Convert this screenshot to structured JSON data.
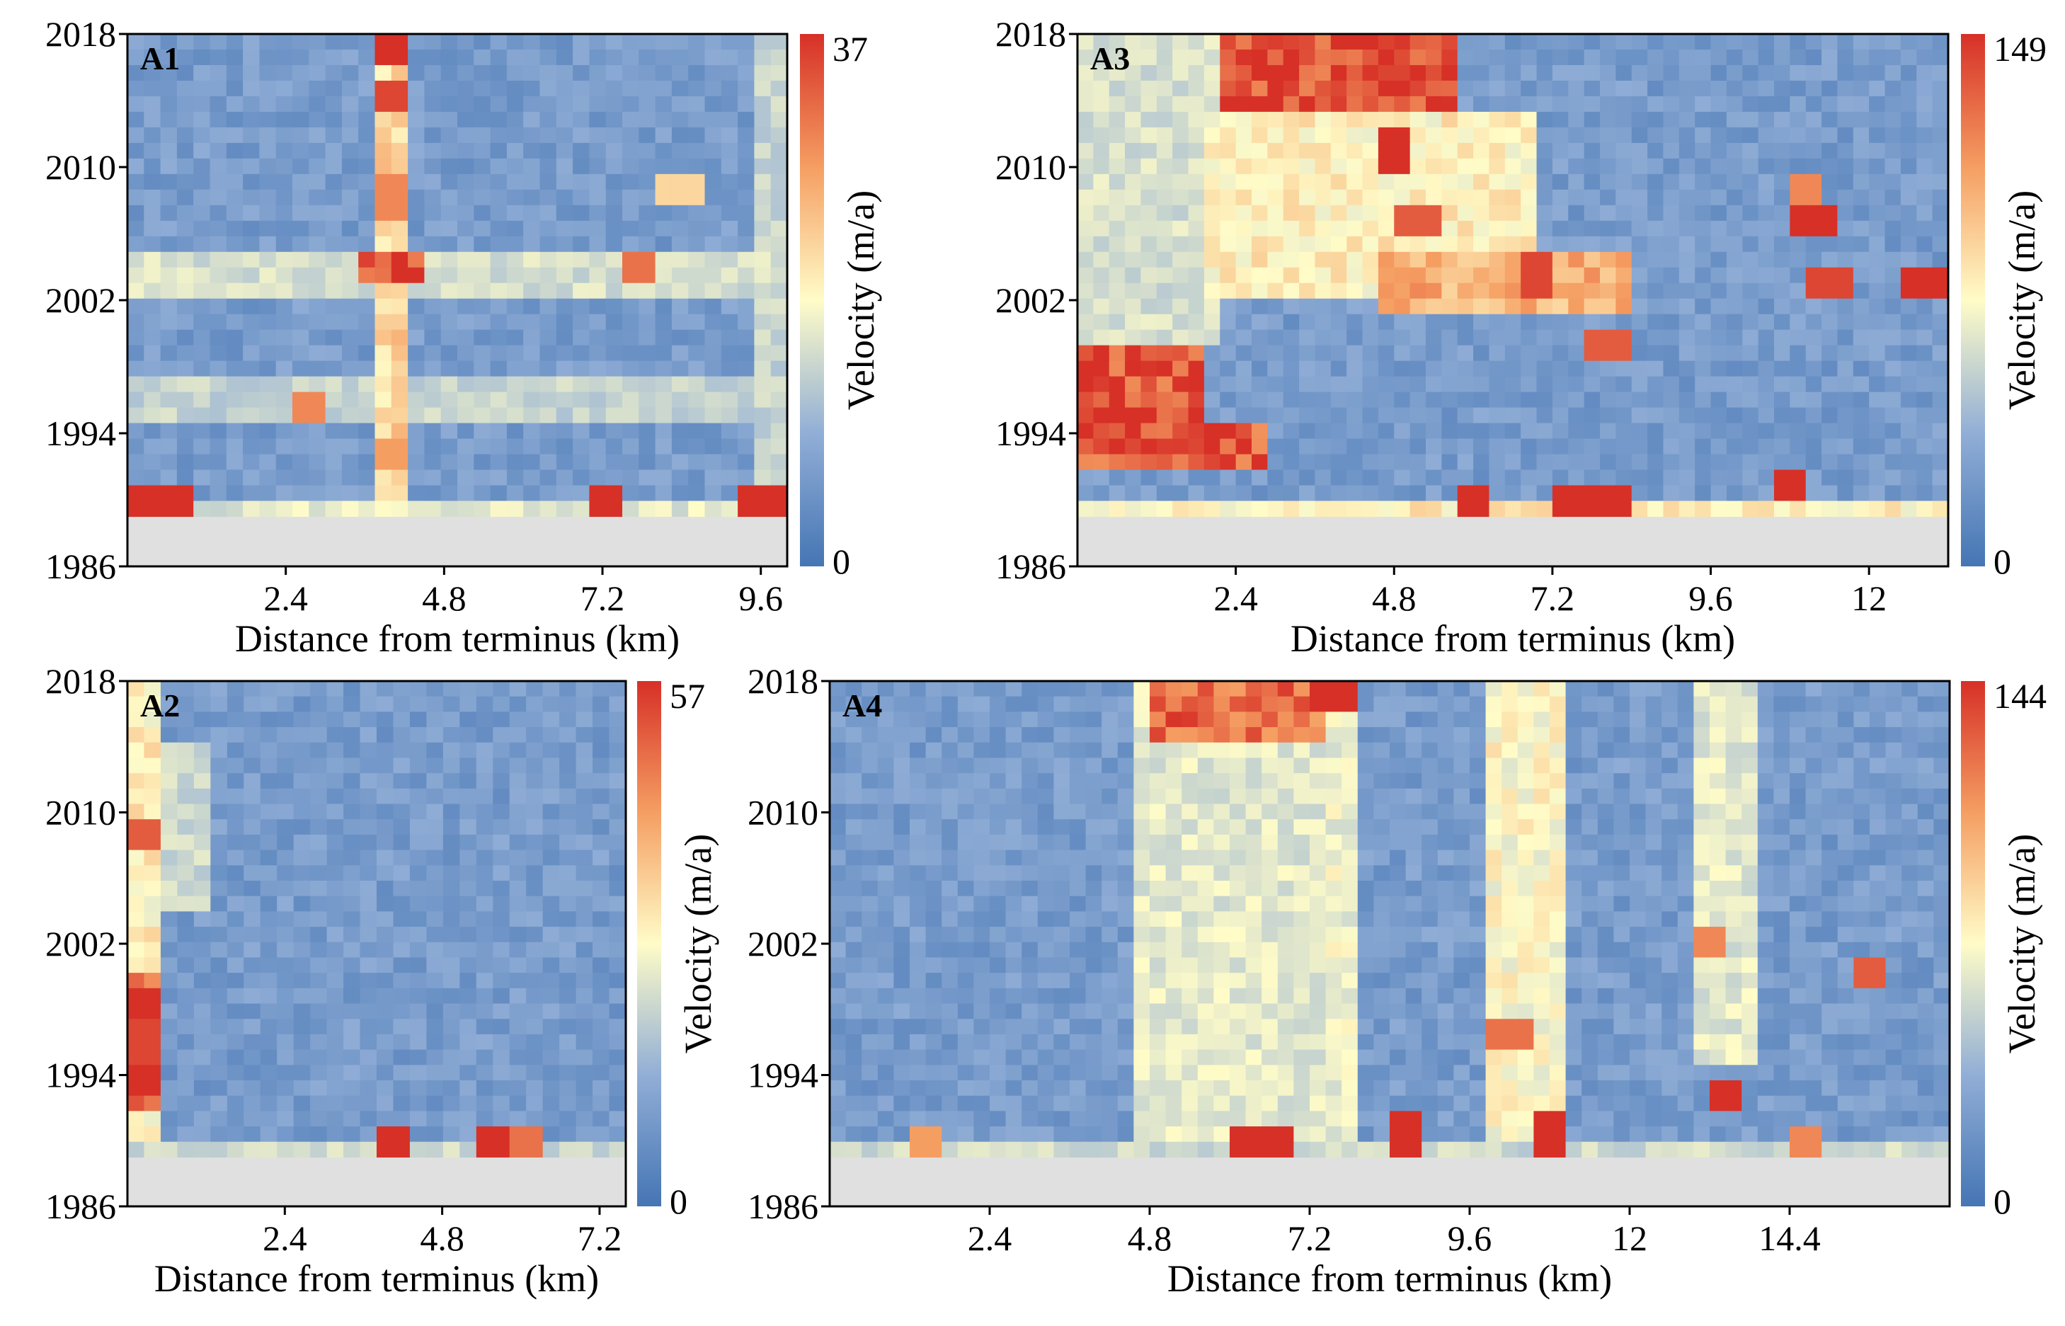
{
  "figure": {
    "description_units": "distance km, year, velocity m/a"
  },
  "chart_data": [
    {
      "type": "heatmap",
      "panel_label": "A1",
      "xlabel": "Distance from terminus (km)",
      "ylabel": "",
      "x_ticks": [
        "2.4",
        "4.8",
        "7.2",
        "9.6"
      ],
      "x_tick_values": [
        2.4,
        4.8,
        7.2,
        9.6
      ],
      "xlim": [
        0,
        10.0
      ],
      "y_ticks": [
        "2018",
        "2010",
        "2002",
        "1994",
        "1986"
      ],
      "y_tick_values": [
        2018,
        2010,
        2002,
        1994,
        1986
      ],
      "ylim": [
        1986,
        2018
      ],
      "data_years": [
        1989,
        2018
      ],
      "colorbar": {
        "label": "Velocity (m/a)",
        "min": 0,
        "max": 37,
        "min_label": "0",
        "max_label": "37"
      },
      "features": [
        {
          "x_from": 3.7,
          "x_to": 4.3,
          "y_from": 1990,
          "y_to": 2018,
          "level": 0.62
        },
        {
          "x_from": 3.6,
          "x_to": 4.6,
          "y_from": 2003,
          "y_to": 2005,
          "level": 0.98
        },
        {
          "x_from": 0.0,
          "x_to": 10.0,
          "y_from": 2002,
          "y_to": 2004.5,
          "level": 0.42
        },
        {
          "x_from": 0.0,
          "x_to": 10.0,
          "y_from": 1995,
          "y_to": 1997,
          "level": 0.38
        },
        {
          "x_from": 0.0,
          "x_to": 10.0,
          "y_from": 1989,
          "y_to": 1990,
          "level": 0.45
        },
        {
          "x_from": 9.4,
          "x_to": 10.0,
          "y_from": 1990,
          "y_to": 2018,
          "level": 0.38
        }
      ],
      "hotspots": [
        [
          4.0,
          2017,
          1.0
        ],
        [
          4.0,
          2014,
          0.95
        ],
        [
          4.0,
          2008,
          0.8
        ],
        [
          4.0,
          1993,
          0.75
        ],
        [
          7.2,
          1989.5,
          1.0
        ],
        [
          0.2,
          1989.5,
          1.0
        ],
        [
          0.8,
          1989.5,
          1.0
        ],
        [
          9.6,
          1989.5,
          1.0
        ],
        [
          7.8,
          2004,
          0.85
        ],
        [
          2.8,
          1995.5,
          0.8
        ],
        [
          8.4,
          2008.5,
          0.6
        ]
      ]
    },
    {
      "type": "heatmap",
      "panel_label": "A3",
      "xlabel": "Distance from terminus (km)",
      "ylabel": "",
      "x_ticks": [
        "2.4",
        "4.8",
        "7.2",
        "9.6",
        "12"
      ],
      "x_tick_values": [
        2.4,
        4.8,
        7.2,
        9.6,
        12
      ],
      "xlim": [
        0,
        13.2
      ],
      "y_ticks": [
        "2018",
        "2010",
        "2002",
        "1994",
        "1986"
      ],
      "y_tick_values": [
        2018,
        2010,
        2002,
        1994,
        1986
      ],
      "ylim": [
        1986,
        2018
      ],
      "data_years": [
        1989,
        2018
      ],
      "colorbar": {
        "label": "Velocity (m/a)",
        "min": 0,
        "max": 149,
        "min_label": "0",
        "max_label": "149"
      },
      "features": [
        {
          "x_from": 2.2,
          "x_to": 5.8,
          "y_from": 2013,
          "y_to": 2018,
          "level": 0.98
        },
        {
          "x_from": 2.0,
          "x_to": 7.0,
          "y_from": 2002,
          "y_to": 2013,
          "level": 0.55
        },
        {
          "x_from": 0.0,
          "x_to": 2.0,
          "y_from": 1992,
          "y_to": 1999,
          "level": 0.96
        },
        {
          "x_from": 2.0,
          "x_to": 2.8,
          "y_from": 1992,
          "y_to": 1995,
          "level": 0.95
        },
        {
          "x_from": 4.5,
          "x_to": 8.5,
          "y_from": 2001,
          "y_to": 2005,
          "level": 0.72
        },
        {
          "x_from": 0.0,
          "x_to": 13.2,
          "y_from": 1989,
          "y_to": 1990,
          "level": 0.55
        },
        {
          "x_from": 0.0,
          "x_to": 2.2,
          "y_from": 1999,
          "y_to": 2018,
          "level": 0.42
        }
      ],
      "hotspots": [
        [
          4.8,
          2011,
          1.0
        ],
        [
          5.2,
          2007,
          0.9
        ],
        [
          7.0,
          2003.5,
          0.95
        ],
        [
          8.0,
          1999.5,
          0.9
        ],
        [
          11.2,
          2006.5,
          1.0
        ],
        [
          12.8,
          2003,
          1.0
        ],
        [
          10.8,
          1991,
          1.0
        ],
        [
          11.4,
          2003,
          0.95
        ],
        [
          6.0,
          1989.5,
          1.0
        ],
        [
          7.6,
          1989.5,
          1.0
        ],
        [
          8.2,
          1989.5,
          1.0
        ],
        [
          11.0,
          2008,
          0.8
        ]
      ]
    },
    {
      "type": "heatmap",
      "panel_label": "A2",
      "xlabel": "Distance from terminus (km)",
      "ylabel": "",
      "x_ticks": [
        "2.4",
        "4.8",
        "7.2"
      ],
      "x_tick_values": [
        2.4,
        4.8,
        7.2
      ],
      "xlim": [
        0,
        7.6
      ],
      "y_ticks": [
        "2018",
        "2010",
        "2002",
        "1994",
        "1986"
      ],
      "y_tick_values": [
        2018,
        2010,
        2002,
        1994,
        1986
      ],
      "ylim": [
        1986,
        2018
      ],
      "data_years": [
        1989,
        2018
      ],
      "colorbar": {
        "label": "Velocity (m/a)",
        "min": 0,
        "max": 57,
        "min_label": "0",
        "max_label": "57"
      },
      "features": [
        {
          "x_from": 0.0,
          "x_to": 0.6,
          "y_from": 1990,
          "y_to": 2018,
          "level": 0.55
        },
        {
          "x_from": 0.0,
          "x_to": 0.6,
          "y_from": 1992,
          "y_to": 2000,
          "level": 0.88
        },
        {
          "x_from": 0.6,
          "x_to": 1.2,
          "y_from": 2004,
          "y_to": 2014,
          "level": 0.4
        },
        {
          "x_from": 0.0,
          "x_to": 7.6,
          "y_from": 1989,
          "y_to": 1990,
          "level": 0.4
        }
      ],
      "hotspots": [
        [
          0.3,
          2008.5,
          0.9
        ],
        [
          0.3,
          1998.5,
          1.0
        ],
        [
          0.3,
          1993.5,
          1.0
        ],
        [
          4.0,
          1989.5,
          1.0
        ],
        [
          5.5,
          1989.5,
          1.0
        ],
        [
          6.1,
          1989.5,
          0.85
        ],
        [
          0.3,
          1996,
          0.95
        ]
      ]
    },
    {
      "type": "heatmap",
      "panel_label": "A4",
      "xlabel": "Distance from terminus (km)",
      "ylabel": "",
      "x_ticks": [
        "2.4",
        "4.8",
        "7.2",
        "9.6",
        "12",
        "14.4"
      ],
      "x_tick_values": [
        2.4,
        4.8,
        7.2,
        9.6,
        12,
        14.4
      ],
      "xlim": [
        0,
        16.8
      ],
      "y_ticks": [
        "2018",
        "2010",
        "2002",
        "1994",
        "1986"
      ],
      "y_tick_values": [
        2018,
        2010,
        2002,
        1994,
        1986
      ],
      "ylim": [
        1986,
        2018
      ],
      "data_years": [
        1989,
        2018
      ],
      "colorbar": {
        "label": "Velocity (m/a)",
        "min": 0,
        "max": 144,
        "min_label": "0",
        "max_label": "144"
      },
      "features": [
        {
          "x_from": 4.6,
          "x_to": 7.4,
          "y_from": 1990,
          "y_to": 2018,
          "level": 0.45
        },
        {
          "x_from": 4.8,
          "x_to": 7.4,
          "y_from": 2014,
          "y_to": 2018,
          "level": 0.9
        },
        {
          "x_from": 9.8,
          "x_to": 11.0,
          "y_from": 1990,
          "y_to": 2018,
          "level": 0.52
        },
        {
          "x_from": 13.0,
          "x_to": 13.8,
          "y_from": 1995,
          "y_to": 2018,
          "level": 0.45
        },
        {
          "x_from": 7.4,
          "x_to": 7.8,
          "y_from": 1990,
          "y_to": 2018,
          "level": 0.48
        },
        {
          "x_from": 0.0,
          "x_to": 16.8,
          "y_from": 1989,
          "y_to": 1990,
          "level": 0.4
        }
      ],
      "hotspots": [
        [
          6.2,
          1989.5,
          1.0
        ],
        [
          6.6,
          1989.5,
          1.0
        ],
        [
          10.8,
          1990.5,
          1.0
        ],
        [
          8.6,
          1990.5,
          1.0
        ],
        [
          13.4,
          1992.5,
          1.0
        ],
        [
          15.6,
          2000,
          0.9
        ],
        [
          10.2,
          1996.5,
          0.85
        ],
        [
          13.2,
          2002,
          0.8
        ],
        [
          7.6,
          2017,
          1.0
        ],
        [
          1.4,
          1989.5,
          0.75
        ],
        [
          14.6,
          1989.5,
          0.8
        ]
      ]
    }
  ]
}
